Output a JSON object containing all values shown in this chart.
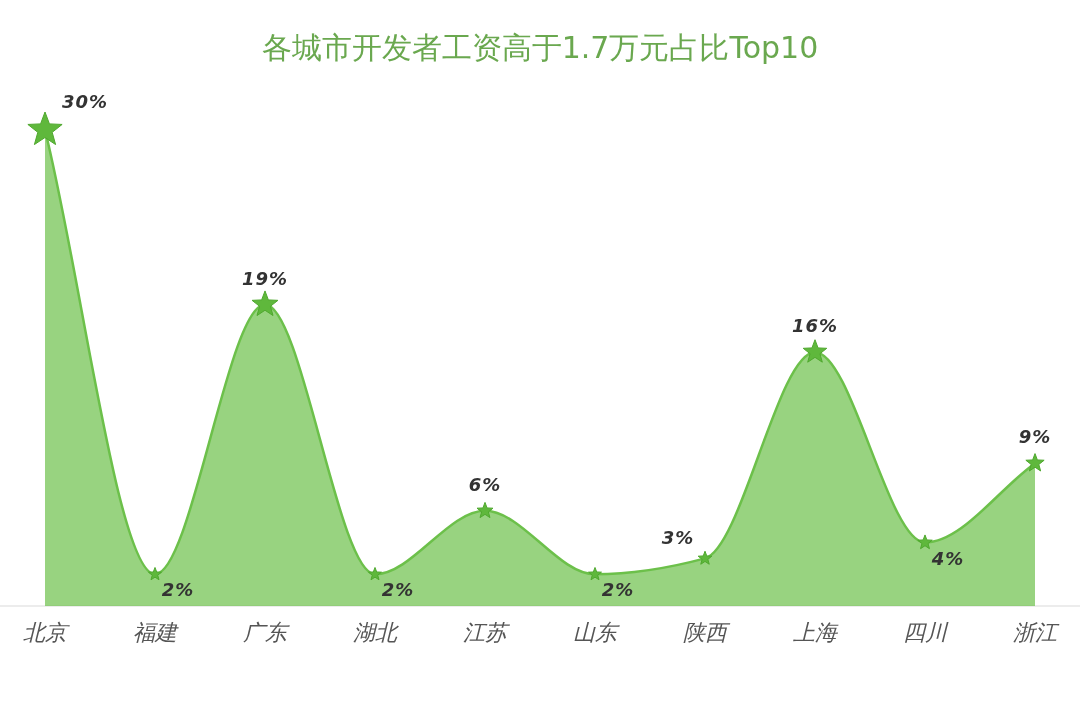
{
  "chart_data": {
    "type": "area",
    "title": "各城市开发者工资高于1.7万元占比Top10",
    "categories": [
      "北京",
      "福建",
      "广东",
      "湖北",
      "江苏",
      "山东",
      "陕西",
      "上海",
      "四川",
      "浙江"
    ],
    "series": [
      {
        "color": "#6cc04a",
        "values": [
          30,
          2,
          19,
          2,
          6,
          2,
          3,
          16,
          4,
          9
        ],
        "value_labels": [
          "30%",
          "2%",
          "19%",
          "2%",
          "6%",
          "2%",
          "3%",
          "16%",
          "4%",
          "9%"
        ]
      }
    ],
    "marker": "star"
  }
}
